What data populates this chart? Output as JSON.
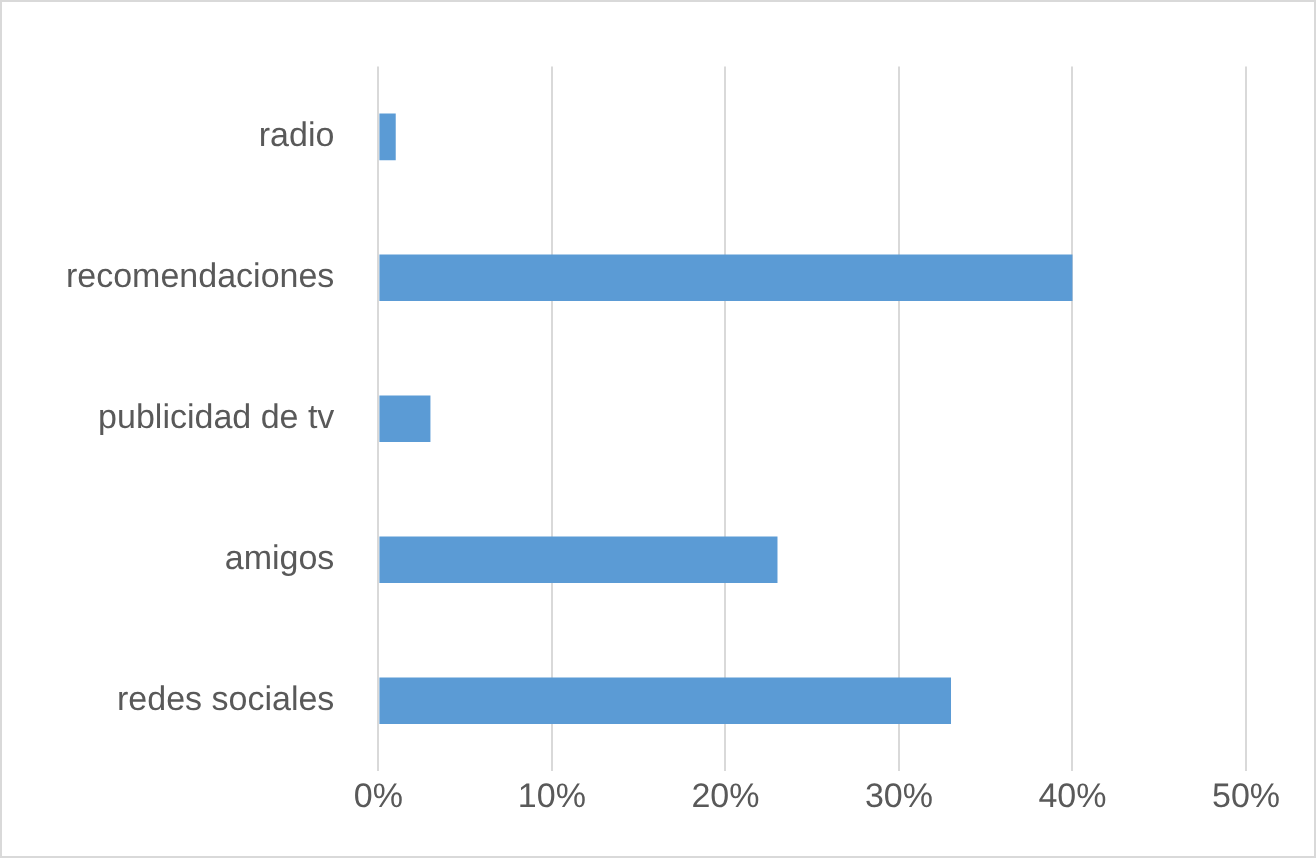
{
  "chart_data": {
    "type": "bar",
    "orientation": "horizontal",
    "categories": [
      "radio",
      "recomendaciones",
      "publicidad de tv",
      "amigos",
      "redes sociales"
    ],
    "values": [
      1,
      40,
      3,
      23,
      33
    ],
    "color": "#5b9bd5",
    "xlim": [
      0,
      50
    ],
    "xticks": [
      {
        "value": 0,
        "label": "0%"
      },
      {
        "value": 10,
        "label": "10%"
      },
      {
        "value": 20,
        "label": "20%"
      },
      {
        "value": 30,
        "label": "30%"
      },
      {
        "value": 40,
        "label": "40%"
      },
      {
        "value": 50,
        "label": "50%"
      }
    ],
    "grid": "x"
  }
}
